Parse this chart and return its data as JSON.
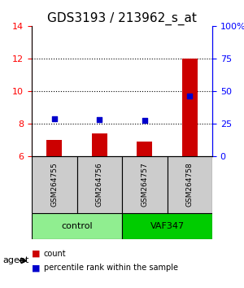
{
  "title": "GDS3193 / 213962_s_at",
  "samples": [
    "GSM264755",
    "GSM264756",
    "GSM264757",
    "GSM264758"
  ],
  "count_values": [
    7.0,
    7.4,
    6.9,
    12.0
  ],
  "percentile_values": [
    8.3,
    8.25,
    8.2,
    9.7
  ],
  "bar_bottom": 6.0,
  "ylim_left": [
    6,
    14
  ],
  "ylim_right": [
    0,
    100
  ],
  "yticks_left": [
    6,
    8,
    10,
    12,
    14
  ],
  "yticks_right": [
    0,
    25,
    50,
    75,
    100
  ],
  "ytick_labels_right": [
    "0",
    "25",
    "50",
    "75",
    "100%"
  ],
  "bar_color": "#cc0000",
  "dot_color": "#0000cc",
  "groups": [
    {
      "label": "control",
      "indices": [
        0,
        1
      ],
      "color": "#90ee90"
    },
    {
      "label": "VAF347",
      "indices": [
        2,
        3
      ],
      "color": "#00cc00"
    }
  ],
  "group_label": "agent",
  "legend_count_label": "count",
  "legend_percentile_label": "percentile rank within the sample",
  "dotted_lines": [
    8,
    10,
    12
  ],
  "sample_box_color": "#cccccc",
  "title_fontsize": 11,
  "axis_fontsize": 8,
  "tick_fontsize": 8
}
